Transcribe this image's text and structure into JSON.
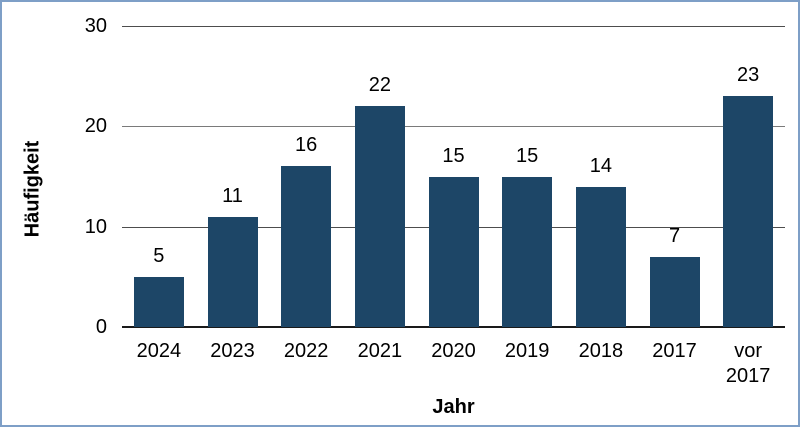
{
  "frame": {
    "border_color": "#7E9FC7",
    "background_color": "#FFFFFF"
  },
  "chart_data": {
    "type": "bar",
    "title": "",
    "categories": [
      "2024",
      "2023",
      "2022",
      "2021",
      "2020",
      "2019",
      "2018",
      "2017",
      "vor 2017"
    ],
    "values": [
      5,
      11,
      16,
      22,
      15,
      15,
      14,
      7,
      23
    ],
    "data_labels": [
      5,
      11,
      16,
      22,
      15,
      15,
      14,
      7,
      23
    ],
    "xlabel": "Jahr",
    "ylabel": "Häufigkeit",
    "ylim": [
      0,
      30
    ],
    "yticks": [
      0,
      10,
      20,
      30
    ],
    "grid": "horizontal",
    "legend": "none",
    "bar_color": "#1D4667",
    "gridline_color": "#7A7A7A",
    "axis_color": "#1A1A1A",
    "text_color": "#000000"
  }
}
